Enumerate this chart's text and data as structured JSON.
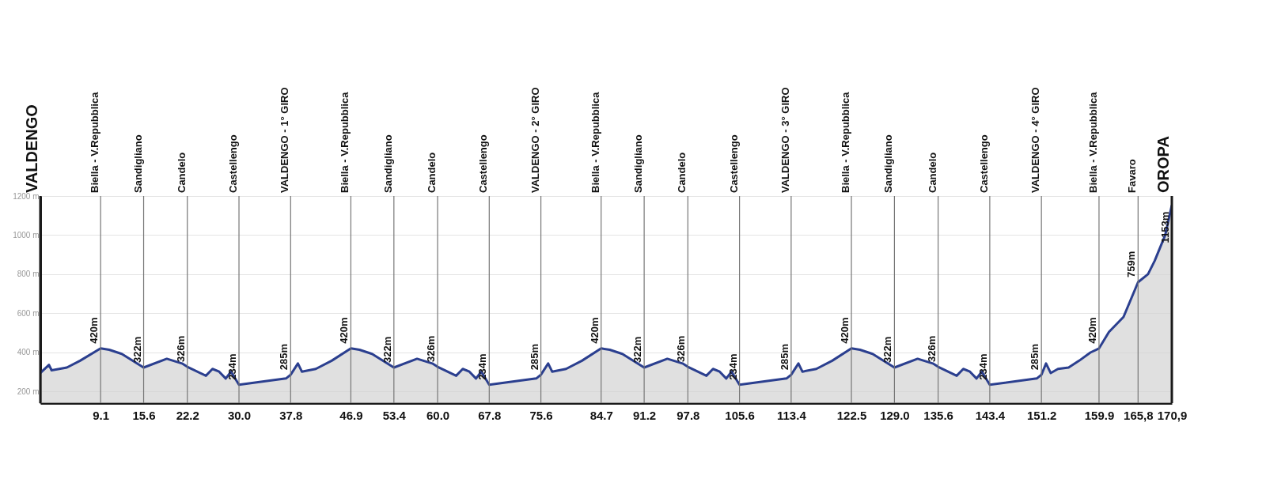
{
  "chart_data": {
    "type": "area",
    "xlim": [
      0,
      170.9
    ],
    "ylim": [
      140,
      1200
    ],
    "yticks": [
      {
        "value": 200,
        "label": "200 m"
      },
      {
        "value": 400,
        "label": "400 m"
      },
      {
        "value": 600,
        "label": "600 m"
      },
      {
        "value": 800,
        "label": "800 m"
      },
      {
        "value": 1000,
        "label": "1000 m"
      },
      {
        "value": 1200,
        "label": "1200 m"
      }
    ],
    "xticks": [
      9.1,
      15.6,
      22.2,
      {
        "value": 30,
        "label": "30.0"
      },
      37.8,
      46.9,
      53.4,
      {
        "value": 60,
        "label": "60.0"
      },
      67.8,
      75.6,
      84.7,
      91.2,
      97.8,
      105.6,
      113.4,
      122.5,
      {
        "value": 129,
        "label": "129.0"
      },
      135.6,
      143.4,
      151.2,
      159.9,
      {
        "value": 165.8,
        "label": "165,8"
      },
      {
        "value": 170.9,
        "label": "170,9"
      }
    ],
    "grid": "y",
    "series": [
      {
        "color": "#2b3f8f",
        "x": [
          0,
          1.3,
          1.7,
          4.0,
          6.0,
          9.1,
          10.4,
          12.3,
          15.6,
          19.1,
          21.4,
          22.2,
          25.0,
          26.0,
          27.0,
          28.0,
          28.8,
          30.0,
          37.1,
          37.8,
          38.9,
          39.5,
          41.6,
          44.0,
          46.9,
          48.2,
          50.1,
          53.4,
          56.9,
          59.2,
          60.0,
          62.8,
          63.8,
          64.8,
          65.8,
          66.6,
          67.8,
          74.9,
          75.6,
          76.7,
          77.3,
          79.4,
          81.8,
          84.7,
          86.0,
          87.9,
          91.2,
          94.7,
          97.0,
          97.8,
          100.6,
          101.6,
          102.6,
          103.6,
          104.4,
          105.6,
          112.7,
          113.4,
          114.5,
          115.1,
          117.2,
          119.6,
          122.5,
          123.8,
          125.7,
          129.0,
          132.5,
          134.8,
          135.6,
          138.4,
          139.4,
          140.4,
          141.4,
          142.2,
          143.4,
          150.5,
          151.2,
          151.9,
          152.6,
          153.7,
          155.3,
          156.9,
          158.6,
          159.9,
          161.4,
          163.6,
          165.8,
          167.3,
          168.3,
          169.9,
          170.9
        ],
        "values": [
          294,
          336,
          308,
          322,
          357,
          420,
          413,
          392,
          322,
          367,
          343,
          326,
          280,
          315,
          301,
          266,
          301,
          234,
          266,
          285,
          343,
          301,
          315,
          357,
          420,
          413,
          392,
          322,
          367,
          343,
          326,
          280,
          315,
          301,
          266,
          301,
          234,
          266,
          285,
          343,
          301,
          315,
          357,
          420,
          413,
          392,
          322,
          367,
          343,
          326,
          280,
          315,
          301,
          266,
          301,
          234,
          266,
          285,
          343,
          301,
          315,
          357,
          420,
          413,
          392,
          322,
          367,
          343,
          326,
          280,
          315,
          301,
          266,
          301,
          234,
          266,
          285,
          343,
          294,
          315,
          322,
          357,
          399,
          420,
          504,
          581,
          759,
          800,
          868,
          1000,
          1153
        ]
      }
    ],
    "ref_lines": [
      {
        "axis": "x",
        "value": 0,
        "label": "VALDENGO",
        "color": "#1a1a1a"
      },
      {
        "axis": "x",
        "value": 9.1,
        "label": "Biella - V.Repubblica",
        "color": "#777777"
      },
      {
        "axis": "x",
        "value": 15.6,
        "label": "Sandigliano",
        "color": "#777777"
      },
      {
        "axis": "x",
        "value": 22.2,
        "label": "Candelo",
        "color": "#777777"
      },
      {
        "axis": "x",
        "value": 30.0,
        "label": "Castellengo",
        "color": "#777777"
      },
      {
        "axis": "x",
        "value": 37.8,
        "label": "VALDENGO - 1° GIRO",
        "color": "#777777"
      },
      {
        "axis": "x",
        "value": 46.9,
        "label": "Biella - V.Repubblica",
        "color": "#777777"
      },
      {
        "axis": "x",
        "value": 53.4,
        "label": "Sandigliano",
        "color": "#777777"
      },
      {
        "axis": "x",
        "value": 60.0,
        "label": "Candelo",
        "color": "#777777"
      },
      {
        "axis": "x",
        "value": 67.8,
        "label": "Castellengo",
        "color": "#777777"
      },
      {
        "axis": "x",
        "value": 75.6,
        "label": "VALDENGO - 2° GIRO",
        "color": "#777777"
      },
      {
        "axis": "x",
        "value": 84.7,
        "label": "Biella - V.Repubblica",
        "color": "#777777"
      },
      {
        "axis": "x",
        "value": 91.2,
        "label": "Sandigliano",
        "color": "#777777"
      },
      {
        "axis": "x",
        "value": 97.8,
        "label": "Candelo",
        "color": "#777777"
      },
      {
        "axis": "x",
        "value": 105.6,
        "label": "Castellengo",
        "color": "#777777"
      },
      {
        "axis": "x",
        "value": 113.4,
        "label": "VALDENGO - 3° GIRO",
        "color": "#777777"
      },
      {
        "axis": "x",
        "value": 122.5,
        "label": "Biella - V.Repubblica",
        "color": "#777777"
      },
      {
        "axis": "x",
        "value": 129.0,
        "label": "Sandigliano",
        "color": "#777777"
      },
      {
        "axis": "x",
        "value": 135.6,
        "label": "Candelo",
        "color": "#777777"
      },
      {
        "axis": "x",
        "value": 143.4,
        "label": "Castellengo",
        "color": "#777777"
      },
      {
        "axis": "x",
        "value": 151.2,
        "label": "VALDENGO - 4° GIRO",
        "color": "#777777"
      },
      {
        "axis": "x",
        "value": 159.9,
        "label": "Biella - V.Repubblica",
        "color": "#777777"
      },
      {
        "axis": "x",
        "value": 165.8,
        "label": "Favaro",
        "color": "#777777"
      },
      {
        "axis": "x",
        "value": 170.9,
        "label": "OROPA",
        "color": "#1a1a1a"
      }
    ],
    "annotations": [
      {
        "text": "420m",
        "x": 9.1,
        "y": 420
      },
      {
        "text": "322m",
        "x": 15.6,
        "y": 322
      },
      {
        "text": "326m",
        "x": 22.2,
        "y": 326
      },
      {
        "text": "234m",
        "x": 30.0,
        "y": 234
      },
      {
        "text": "285m",
        "x": 37.8,
        "y": 285
      },
      {
        "text": "420m",
        "x": 46.9,
        "y": 420
      },
      {
        "text": "322m",
        "x": 53.4,
        "y": 322
      },
      {
        "text": "326m",
        "x": 60.0,
        "y": 326
      },
      {
        "text": "234m",
        "x": 67.8,
        "y": 234
      },
      {
        "text": "285m",
        "x": 75.6,
        "y": 285
      },
      {
        "text": "420m",
        "x": 84.7,
        "y": 420
      },
      {
        "text": "322m",
        "x": 91.2,
        "y": 322
      },
      {
        "text": "326m",
        "x": 97.8,
        "y": 326
      },
      {
        "text": "234m",
        "x": 105.6,
        "y": 234
      },
      {
        "text": "285m",
        "x": 113.4,
        "y": 285
      },
      {
        "text": "420m",
        "x": 122.5,
        "y": 420
      },
      {
        "text": "322m",
        "x": 129.0,
        "y": 322
      },
      {
        "text": "326m",
        "x": 135.6,
        "y": 326
      },
      {
        "text": "234m",
        "x": 143.4,
        "y": 234
      },
      {
        "text": "285m",
        "x": 151.2,
        "y": 285
      },
      {
        "text": "420m",
        "x": 159.9,
        "y": 420
      },
      {
        "text": "759m",
        "x": 165.8,
        "y": 759
      },
      {
        "text": "1153m",
        "x": 170.9,
        "y": 1153
      }
    ]
  }
}
